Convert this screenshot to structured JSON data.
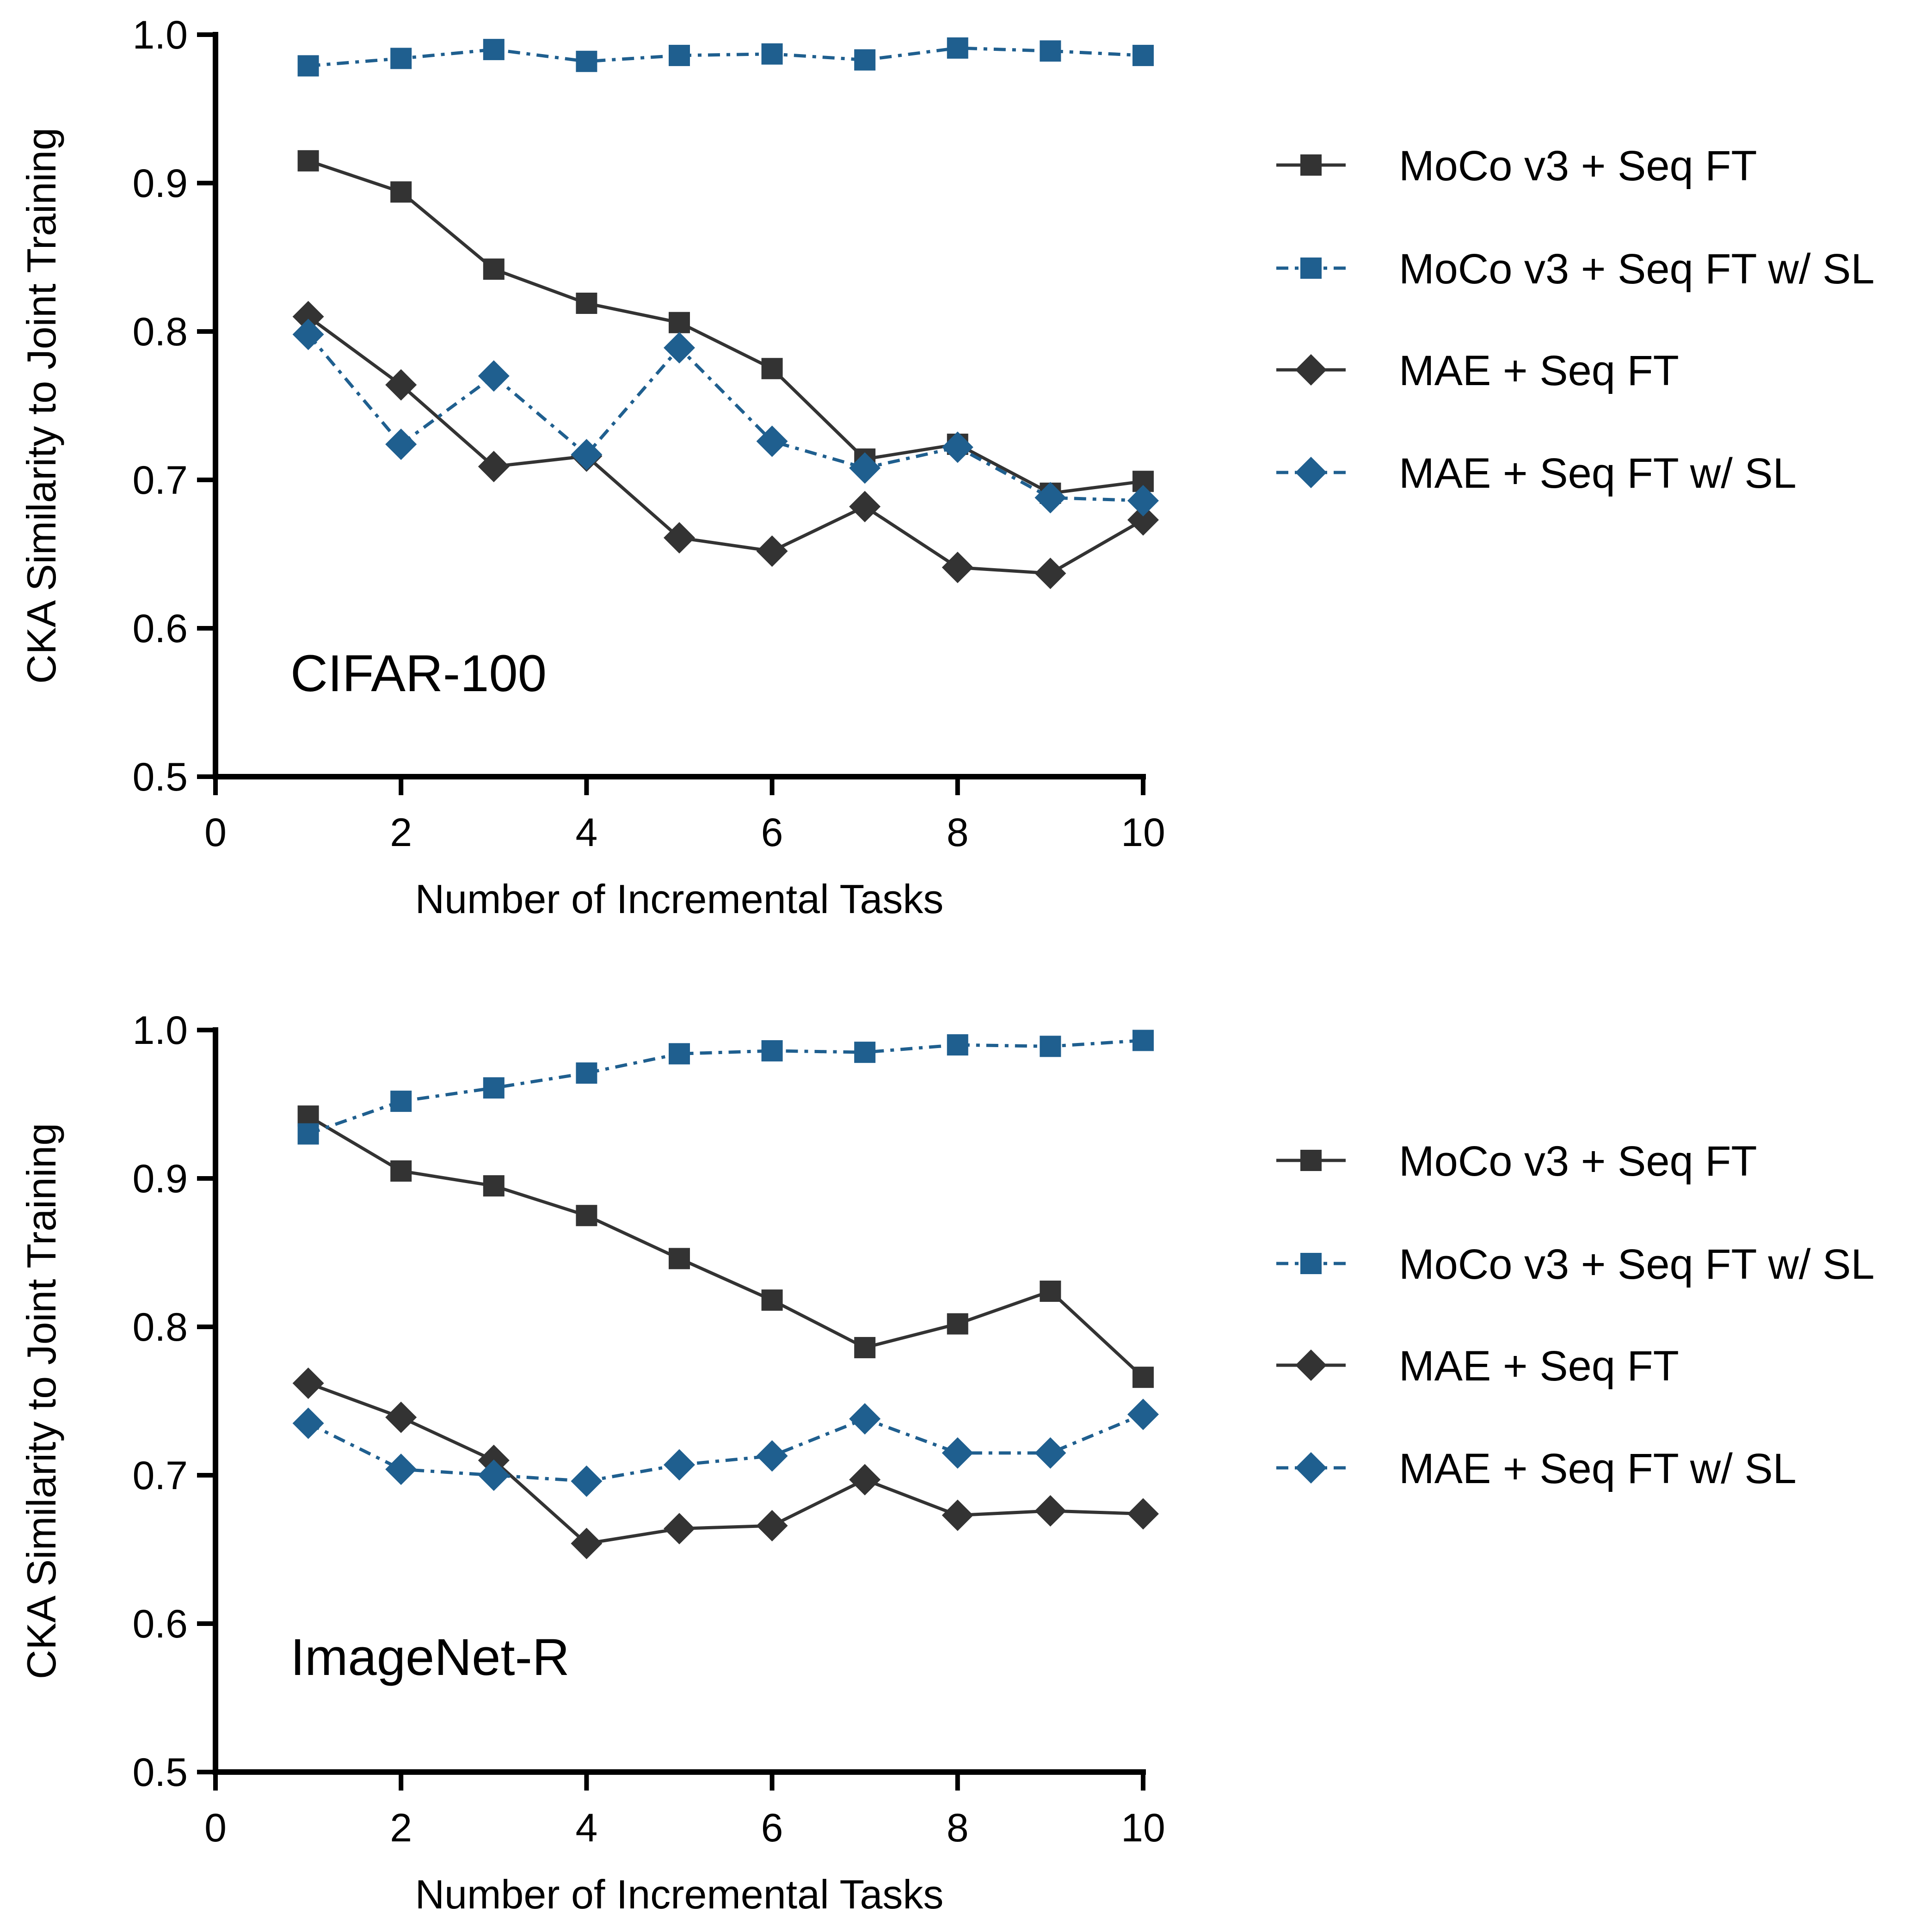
{
  "chart_data": [
    {
      "type": "line",
      "title": "",
      "panel_label": "CIFAR-100",
      "xlabel": "Number of Incremental Tasks",
      "ylabel": "CKA Similarity to Joint Training",
      "xlim": [
        0,
        10
      ],
      "ylim": [
        0.5,
        1.0
      ],
      "xticks": [
        "0",
        "2",
        "4",
        "6",
        "8",
        "10"
      ],
      "yticks": [
        "0.5",
        "0.6",
        "0.7",
        "0.8",
        "0.9",
        "1.0"
      ],
      "legend_position": "right",
      "x": [
        1,
        2,
        3,
        4,
        5,
        6,
        7,
        8,
        9,
        10
      ],
      "series": [
        {
          "name": "MoCo v3 + Seq FT",
          "color": "#333333",
          "marker": "square",
          "dash": "solid",
          "values": [
            0.915,
            0.894,
            0.842,
            0.819,
            0.806,
            0.775,
            0.714,
            0.724,
            0.691,
            0.699
          ]
        },
        {
          "name": "MoCo v3 + Seq FT w/ SL",
          "color": "#1f5f8f",
          "marker": "square",
          "dash": "dashdot",
          "values": [
            0.979,
            0.984,
            0.99,
            0.982,
            0.986,
            0.987,
            0.983,
            0.991,
            0.989,
            0.986
          ]
        },
        {
          "name": "MAE + Seq FT",
          "color": "#333333",
          "marker": "diamond",
          "dash": "solid",
          "values": [
            0.81,
            0.764,
            0.709,
            0.716,
            0.661,
            0.652,
            0.682,
            0.641,
            0.637,
            0.673
          ]
        },
        {
          "name": "MAE + Seq FT w/ SL",
          "color": "#1f5f8f",
          "marker": "diamond",
          "dash": "dashdot",
          "values": [
            0.798,
            0.724,
            0.77,
            0.717,
            0.789,
            0.726,
            0.708,
            0.722,
            0.688,
            0.686
          ]
        }
      ]
    },
    {
      "type": "line",
      "title": "",
      "panel_label": "ImageNet-R",
      "xlabel": "Number of Incremental Tasks",
      "ylabel": "CKA Similarity to Joint Training",
      "xlim": [
        0,
        10
      ],
      "ylim": [
        0.5,
        1.0
      ],
      "xticks": [
        "0",
        "2",
        "4",
        "6",
        "8",
        "10"
      ],
      "yticks": [
        "0.5",
        "0.6",
        "0.7",
        "0.8",
        "0.9",
        "1.0"
      ],
      "legend_position": "right",
      "x": [
        1,
        2,
        3,
        4,
        5,
        6,
        7,
        8,
        9,
        10
      ],
      "series": [
        {
          "name": "MoCo v3 + Seq FT",
          "color": "#333333",
          "marker": "square",
          "dash": "solid",
          "values": [
            0.942,
            0.905,
            0.895,
            0.875,
            0.846,
            0.818,
            0.786,
            0.802,
            0.824,
            0.766
          ]
        },
        {
          "name": "MoCo v3 + Seq FT w/ SL",
          "color": "#1f5f8f",
          "marker": "square",
          "dash": "dashdot",
          "values": [
            0.93,
            0.952,
            0.961,
            0.971,
            0.984,
            0.986,
            0.985,
            0.99,
            0.989,
            0.993
          ]
        },
        {
          "name": "MAE + Seq FT",
          "color": "#333333",
          "marker": "diamond",
          "dash": "solid",
          "values": [
            0.762,
            0.739,
            0.71,
            0.654,
            0.664,
            0.666,
            0.697,
            0.673,
            0.676,
            0.674
          ]
        },
        {
          "name": "MAE + Seq FT w/ SL",
          "color": "#1f5f8f",
          "marker": "diamond",
          "dash": "dashdot",
          "values": [
            0.735,
            0.704,
            0.7,
            0.696,
            0.707,
            0.713,
            0.738,
            0.715,
            0.715,
            0.741
          ]
        }
      ]
    }
  ]
}
